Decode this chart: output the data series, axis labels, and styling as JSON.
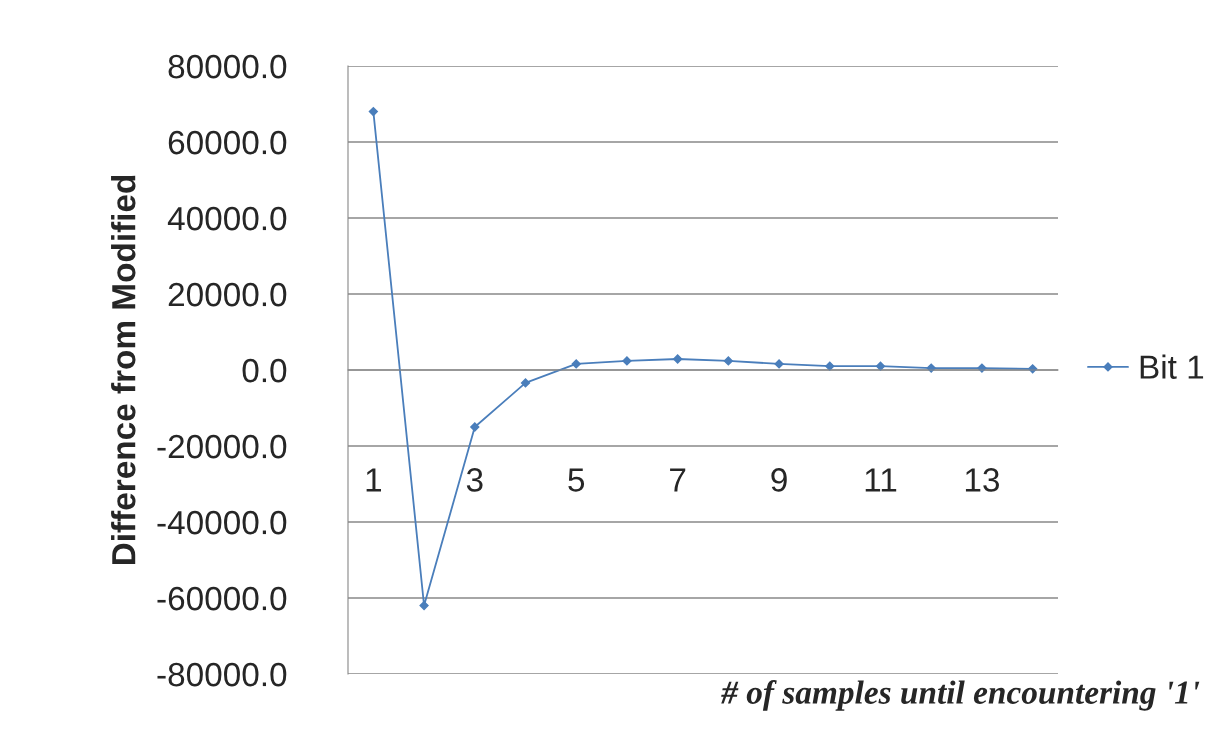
{
  "chart_data": {
    "type": "line",
    "xlabel": "# of samples until encountering '1'",
    "ylabel": "Difference from Modified",
    "categories": [
      "1",
      null,
      "3",
      null,
      "5",
      null,
      "7",
      null,
      "9",
      null,
      "11",
      null,
      "13",
      null
    ],
    "series": [
      {
        "name": "Bit 1",
        "color": "#4a7ebb",
        "values": [
          68000,
          -62000,
          -15000,
          -3400,
          1600,
          2400,
          2900,
          2400,
          1600,
          1000,
          1000,
          500,
          500,
          300
        ]
      }
    ],
    "ylim": [
      -80000,
      80000
    ],
    "yticks": [
      {
        "value": -80000,
        "label": "-80000.0"
      },
      {
        "value": -60000,
        "label": "-60000.0"
      },
      {
        "value": -40000,
        "label": "-40000.0"
      },
      {
        "value": -20000,
        "label": "-20000.0"
      },
      {
        "value": 0,
        "label": "0.0"
      },
      {
        "value": 20000,
        "label": "20000.0"
      },
      {
        "value": 40000,
        "label": "40000.0"
      },
      {
        "value": 60000,
        "label": "60000.0"
      },
      {
        "value": 80000,
        "label": "80000.0"
      }
    ],
    "grid": "y",
    "legend": "right",
    "marker": "diamond",
    "line_style": "solid"
  }
}
